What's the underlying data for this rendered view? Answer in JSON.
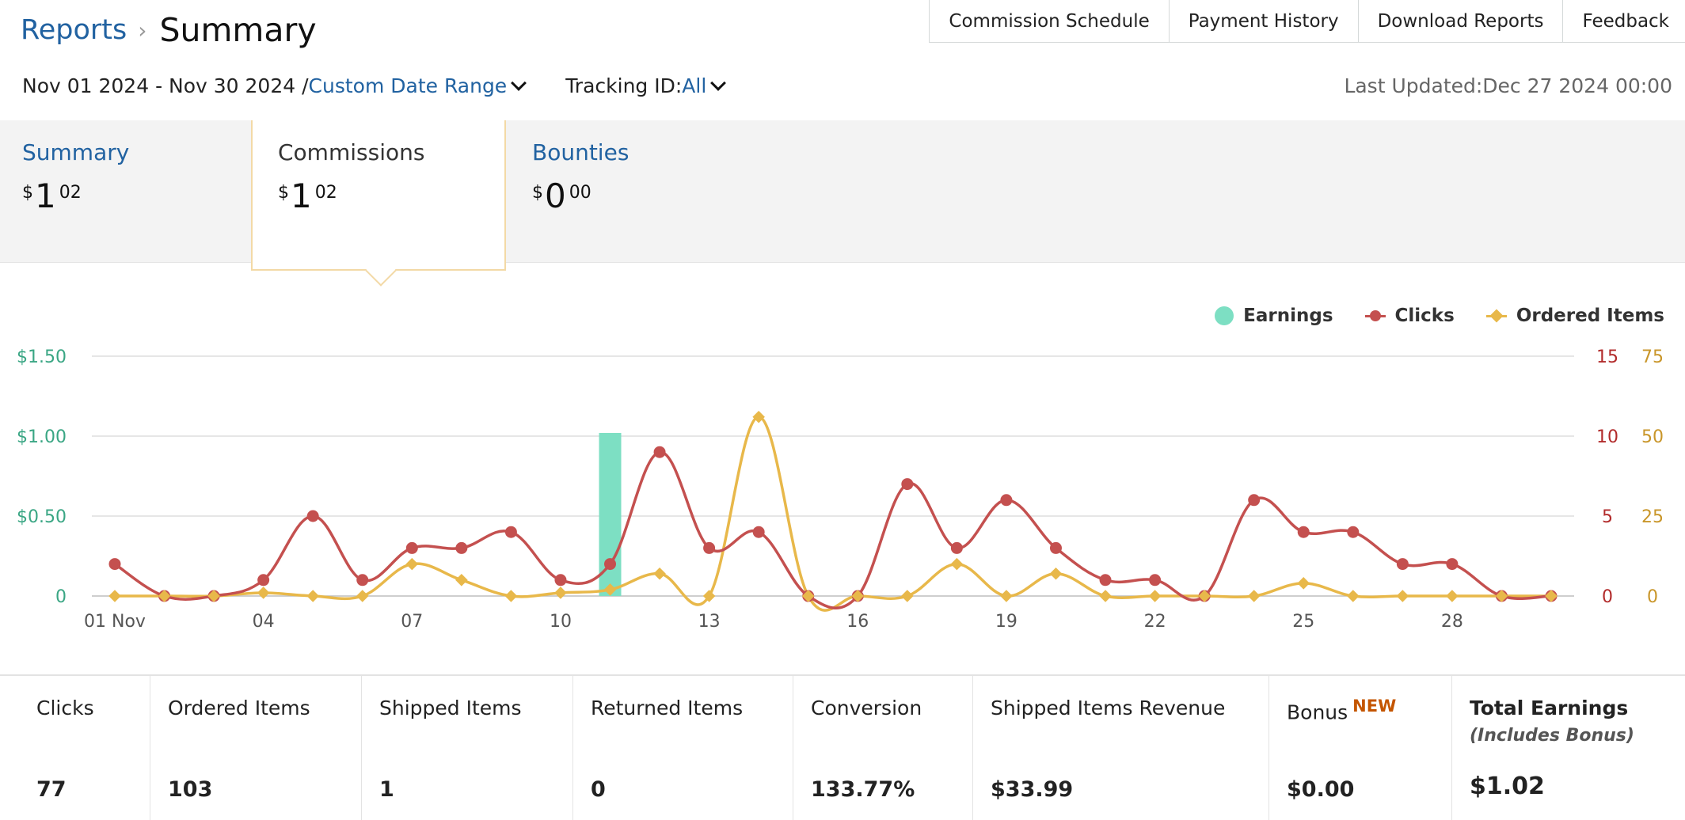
{
  "breadcrumb": {
    "root": "Reports",
    "separator": "›",
    "current": "Summary"
  },
  "top_tabs": [
    "Commission Schedule",
    "Payment History",
    "Download Reports",
    "Feedback"
  ],
  "filters": {
    "date_range": "Nov 01 2024 - Nov 30 2024 /",
    "date_range_link": "Custom Date Range",
    "tracking_label": "Tracking ID:",
    "tracking_value": "All"
  },
  "last_updated": "Last Updated:Dec 27 2024 00:00",
  "summary_tabs": [
    {
      "label": "Summary",
      "currency": "$",
      "dollars": "1",
      "cents": "02"
    },
    {
      "label": "Commissions",
      "currency": "$",
      "dollars": "1",
      "cents": "02"
    },
    {
      "label": "Bounties",
      "currency": "$",
      "dollars": "0",
      "cents": "00"
    }
  ],
  "legend": {
    "earnings": "Earnings",
    "clicks": "Clicks",
    "ordered": "Ordered Items"
  },
  "colors": {
    "earnings": "#7ddfc3",
    "clicks": "#c4504f",
    "ordered": "#e8b84a",
    "link": "#2162a1",
    "badge": "#c45500"
  },
  "chart_data": {
    "type": "line",
    "x": [
      1,
      2,
      3,
      4,
      5,
      6,
      7,
      8,
      9,
      10,
      11,
      12,
      13,
      14,
      15,
      16,
      17,
      18,
      19,
      20,
      21,
      22,
      23,
      24,
      25,
      26,
      27,
      28,
      29,
      30
    ],
    "x_tick_labels": [
      {
        "day": 1,
        "label": "01 Nov"
      },
      {
        "day": 4,
        "label": "04"
      },
      {
        "day": 7,
        "label": "07"
      },
      {
        "day": 10,
        "label": "10"
      },
      {
        "day": 13,
        "label": "13"
      },
      {
        "day": 16,
        "label": "16"
      },
      {
        "day": 19,
        "label": "19"
      },
      {
        "day": 22,
        "label": "22"
      },
      {
        "day": 25,
        "label": "25"
      },
      {
        "day": 28,
        "label": "28"
      }
    ],
    "series": [
      {
        "name": "Earnings",
        "type": "bar",
        "axis": "earnings",
        "values": [
          0,
          0,
          0,
          0,
          0,
          0,
          0,
          0,
          0,
          0,
          1.02,
          0,
          0,
          0,
          0,
          0,
          0,
          0,
          0,
          0,
          0,
          0,
          0,
          0,
          0,
          0,
          0,
          0,
          0,
          0
        ]
      },
      {
        "name": "Clicks",
        "type": "line",
        "axis": "clicks",
        "values": [
          2,
          0,
          0,
          1,
          5,
          1,
          3,
          3,
          4,
          1,
          2,
          9,
          3,
          4,
          0,
          0,
          7,
          3,
          6,
          3,
          1,
          1,
          0,
          6,
          4,
          4,
          2,
          2,
          0,
          0
        ]
      },
      {
        "name": "Ordered Items",
        "type": "line",
        "axis": "ordered",
        "values": [
          0,
          0,
          0,
          1,
          0,
          0,
          10,
          5,
          0,
          1,
          2,
          7,
          0,
          56,
          0,
          0,
          0,
          10,
          0,
          7,
          0,
          0,
          0,
          0,
          4,
          0,
          0,
          0,
          0,
          0
        ]
      }
    ],
    "axes": {
      "earnings": {
        "range": [
          0,
          1.5
        ],
        "ticks": [
          {
            "value": 0,
            "label": "0"
          },
          {
            "value": 0.5,
            "label": "$0.50"
          },
          {
            "value": 1.0,
            "label": "$1.00"
          },
          {
            "value": 1.5,
            "label": "$1.50"
          }
        ]
      },
      "clicks": {
        "range": [
          0,
          15
        ],
        "ticks": [
          {
            "value": 0,
            "label": "0"
          },
          {
            "value": 5,
            "label": "5"
          },
          {
            "value": 10,
            "label": "10"
          },
          {
            "value": 15,
            "label": "15"
          }
        ]
      },
      "ordered": {
        "range": [
          0,
          75
        ],
        "ticks": [
          {
            "value": 0,
            "label": "0"
          },
          {
            "value": 25,
            "label": "25"
          },
          {
            "value": 50,
            "label": "50"
          },
          {
            "value": 75,
            "label": "75"
          }
        ]
      }
    },
    "grid": true,
    "legend_position": "top-right"
  },
  "stats": [
    {
      "label": "Clicks",
      "value": "77"
    },
    {
      "label": "Ordered Items",
      "value": "103"
    },
    {
      "label": "Shipped Items",
      "value": "1"
    },
    {
      "label": "Returned Items",
      "value": "0"
    },
    {
      "label": "Conversion",
      "value": "133.77%"
    },
    {
      "label": "Shipped Items Revenue",
      "value": "$33.99"
    },
    {
      "label": "Bonus",
      "badge": "NEW",
      "value": "$0.00"
    },
    {
      "label": "Total Earnings",
      "sub": "(Includes Bonus)",
      "value": "$1.02"
    }
  ]
}
